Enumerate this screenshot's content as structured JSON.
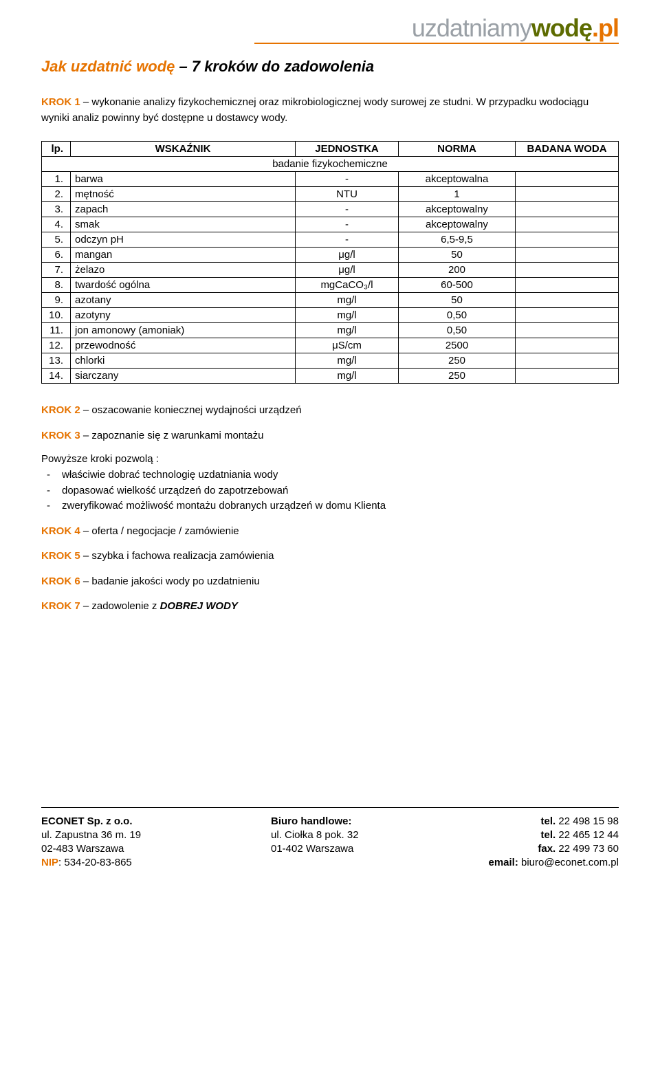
{
  "logo": {
    "part1": "uzdatniamy",
    "part2": "wodę",
    "part3": ".pl",
    "underline_color": "#e67300"
  },
  "title": {
    "prefix": "Jak uzdatnić wodę",
    "suffix": " – 7 kroków do zadowolenia"
  },
  "intro": {
    "label": "KROK 1",
    "text": " – wykonanie analizy fizykochemicznej oraz mikrobiologicznej wody surowej ze studni. W przypadku wodociągu wyniki analiz powinny być dostępne u dostawcy wody."
  },
  "table": {
    "headers": {
      "lp": "lp.",
      "wskaznik": "WSKAŹNIK",
      "jednostka": "JEDNOSTKA",
      "norma": "NORMA",
      "badana": "BADANA WODA"
    },
    "subheader": "badanie fizykochemiczne",
    "col_widths": {
      "lp": 42,
      "wskaznik": null,
      "jednostka": 150,
      "norma": 170,
      "badana": 150
    },
    "rows": [
      {
        "n": "1.",
        "name": "barwa",
        "unit": "-",
        "norm": "akceptowalna",
        "val": ""
      },
      {
        "n": "2.",
        "name": "mętność",
        "unit": "NTU",
        "norm": "1",
        "val": ""
      },
      {
        "n": "3.",
        "name": "zapach",
        "unit": "-",
        "norm": "akceptowalny",
        "val": ""
      },
      {
        "n": "4.",
        "name": "smak",
        "unit": "-",
        "norm": "akceptowalny",
        "val": ""
      },
      {
        "n": "5.",
        "name": "odczyn pH",
        "unit": "-",
        "norm": "6,5-9,5",
        "val": ""
      },
      {
        "n": "6.",
        "name": "mangan",
        "unit": "μg/l",
        "norm": "50",
        "val": ""
      },
      {
        "n": "7.",
        "name": "żelazo",
        "unit": "μg/l",
        "norm": "200",
        "val": ""
      },
      {
        "n": "8.",
        "name": "twardość ogólna",
        "unit": "mgCaCO₃/l",
        "norm": "60-500",
        "val": ""
      },
      {
        "n": "9.",
        "name": "azotany",
        "unit": "mg/l",
        "norm": "50",
        "val": ""
      },
      {
        "n": "10.",
        "name": "azotyny",
        "unit": "mg/l",
        "norm": "0,50",
        "val": ""
      },
      {
        "n": "11.",
        "name": "jon amonowy (amoniak)",
        "unit": "mg/l",
        "norm": "0,50",
        "val": ""
      },
      {
        "n": "12.",
        "name": "przewodność",
        "unit": "μS/cm",
        "norm": "2500",
        "val": ""
      },
      {
        "n": "13.",
        "name": "chlorki",
        "unit": "mg/l",
        "norm": "250",
        "val": ""
      },
      {
        "n": "14.",
        "name": "siarczany",
        "unit": "mg/l",
        "norm": "250",
        "val": ""
      }
    ]
  },
  "krok2": {
    "label": "KROK 2",
    "text": " – oszacowanie koniecznej wydajności urządzeń"
  },
  "krok3": {
    "label": "KROK 3",
    "text": " – zapoznanie się z warunkami montażu"
  },
  "bullets_intro": "Powyższe kroki pozwolą :",
  "bullets": [
    "właściwie dobrać technologię uzdatniania wody",
    "dopasować wielkość urządzeń do zapotrzebowań",
    "zweryfikować możliwość montażu dobranych urządzeń w domu Klienta"
  ],
  "krok4": {
    "label": "KROK 4",
    "text": " – oferta / negocjacje / zamówienie"
  },
  "krok5": {
    "label": "KROK 5",
    "text": " – szybka i fachowa realizacja zamówienia"
  },
  "krok6": {
    "label": "KROK 6",
    "text": " – badanie jakości wody po uzdatnieniu"
  },
  "krok7": {
    "label": "KROK 7",
    "text_pre": " – zadowolenie z ",
    "emph": "DOBREJ WODY"
  },
  "footer": {
    "col1": {
      "line1": "ECONET Sp. z o.o.",
      "line2": "ul. Zapustna 36 m. 19",
      "line3": "02-483 Warszawa",
      "nip_label": "NIP",
      "nip_value": ": 534-20-83-865"
    },
    "col2": {
      "line1": "Biuro handlowe:",
      "line2": "ul. Ciołka 8 pok. 32",
      "line3": "01-402 Warszawa"
    },
    "col3": {
      "tel_label": "tel.",
      "tel1": " 22 498 15 98",
      "tel2": " 22 465 12 44",
      "fax_label": "fax.",
      "fax": " 22 499 73 60",
      "email_label": "email:",
      "email": " biuro@econet.com.pl"
    }
  },
  "colors": {
    "accent": "#e67300",
    "olive": "#5d6b00",
    "grey": "#9aa0a6",
    "text": "#000000",
    "background": "#ffffff",
    "border": "#000000"
  }
}
